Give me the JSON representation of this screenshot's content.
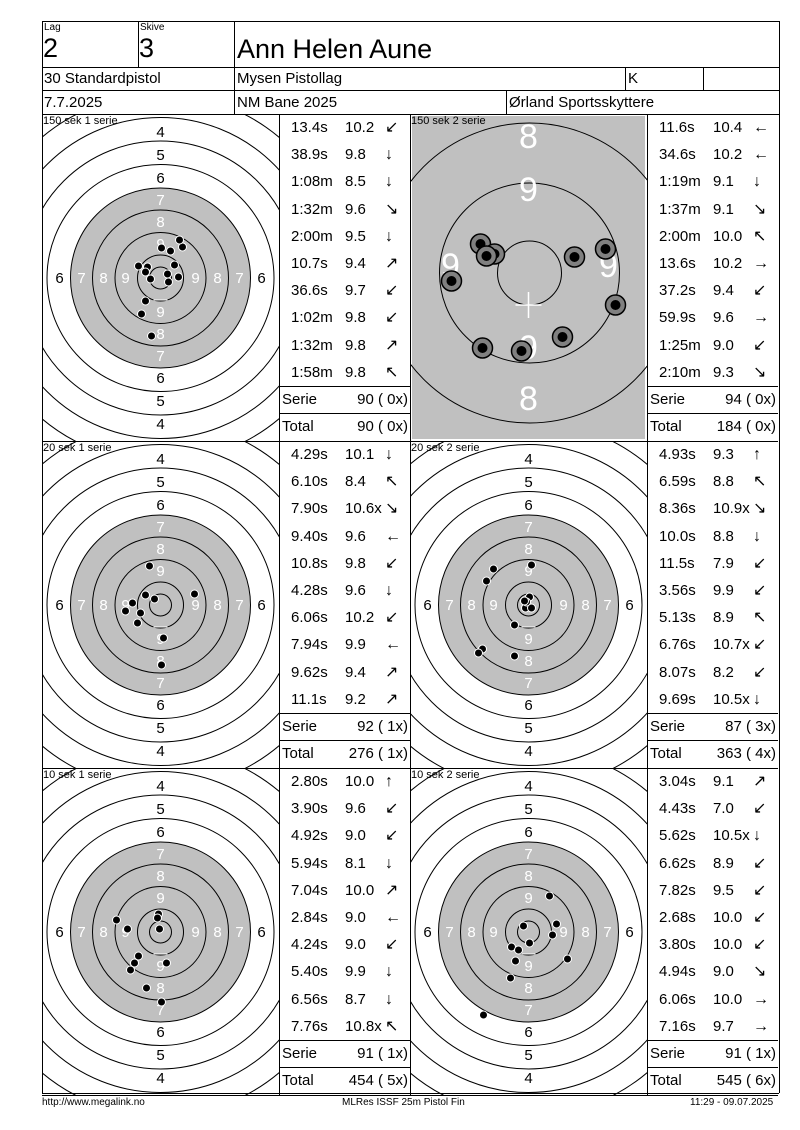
{
  "header": {
    "lag_label": "Lag",
    "lag": "2",
    "skive_label": "Skive",
    "skive": "3",
    "name": "Ann Helen Aune",
    "event": "30 Standardpistol",
    "club": "Mysen Pistollag",
    "class": "K",
    "date": "7.7.2025",
    "competition": "NM Bane 2025",
    "organizer": "Ørland Sportsskyttere"
  },
  "panels": [
    {
      "title": "150 sek 1 serie",
      "target": "precision",
      "shots": [
        {
          "time": "13.4s",
          "score": "10.2",
          "dir": "↙"
        },
        {
          "time": "38.9s",
          "score": "9.8",
          "dir": "↓"
        },
        {
          "time": "1:08m",
          "score": "8.5",
          "dir": "↓"
        },
        {
          "time": "1:32m",
          "score": "9.6",
          "dir": "↘"
        },
        {
          "time": "2:00m",
          "score": "9.5",
          "dir": "↓"
        },
        {
          "time": "10.7s",
          "score": "9.4",
          "dir": "↗"
        },
        {
          "time": "36.6s",
          "score": "9.7",
          "dir": "↙"
        },
        {
          "time": "1:02m",
          "score": "9.8",
          "dir": "↙"
        },
        {
          "time": "1:32m",
          "score": "9.8",
          "dir": "↗"
        },
        {
          "time": "1:58m",
          "score": "9.8",
          "dir": "↖"
        }
      ],
      "serie_label": "Serie",
      "serie": "90 ( 0x)",
      "total_label": "Total",
      "total": "90 ( 0x)",
      "hits": [
        [
          22,
          -31
        ],
        [
          19,
          -38
        ],
        [
          10,
          -27
        ],
        [
          1,
          -30
        ],
        [
          14,
          -13
        ],
        [
          -13,
          -11
        ],
        [
          -22,
          -12
        ],
        [
          -15,
          -6
        ],
        [
          7,
          -4
        ],
        [
          18,
          -1
        ],
        [
          8,
          4
        ],
        [
          -10,
          1
        ],
        [
          -9,
          58
        ],
        [
          -19,
          36
        ],
        [
          -15,
          23
        ]
      ]
    },
    {
      "title": "150 sek 2 serie",
      "target": "zoom",
      "shots": [
        {
          "time": "11.6s",
          "score": "10.4",
          "dir": "←"
        },
        {
          "time": "34.6s",
          "score": "10.2",
          "dir": "←"
        },
        {
          "time": "1:19m",
          "score": "9.1",
          "dir": "↓"
        },
        {
          "time": "1:37m",
          "score": "9.1",
          "dir": "↘"
        },
        {
          "time": "2:00m",
          "score": "10.0",
          "dir": "↖"
        },
        {
          "time": "13.6s",
          "score": "10.2",
          "dir": "→"
        },
        {
          "time": "37.2s",
          "score": "9.4",
          "dir": "↙"
        },
        {
          "time": "59.9s",
          "score": "9.6",
          "dir": "→"
        },
        {
          "time": "1:25m",
          "score": "9.0",
          "dir": "↙"
        },
        {
          "time": "2:10m",
          "score": "9.3",
          "dir": "↘"
        }
      ],
      "serie_label": "Serie",
      "serie": "94 ( 0x)",
      "total_label": "Total",
      "total": "184 ( 0x)",
      "hits": [
        [
          -48,
          -34
        ],
        [
          -34,
          -24
        ],
        [
          -42,
          -22
        ],
        [
          46,
          -21
        ],
        [
          77,
          -29
        ],
        [
          -77,
          3
        ],
        [
          87,
          27
        ],
        [
          -46,
          70
        ],
        [
          -7,
          73
        ],
        [
          34,
          59
        ]
      ],
      "zoom_labels": [
        "8",
        "9",
        "9",
        "9",
        "9",
        "8"
      ]
    },
    {
      "title": "20 sek 1 serie",
      "target": "precision",
      "shots": [
        {
          "time": "4.29s",
          "score": "10.1",
          "dir": "↓"
        },
        {
          "time": "6.10s",
          "score": "8.4",
          "dir": "↖"
        },
        {
          "time": "7.90s",
          "score": "10.6x",
          "dir": "↘"
        },
        {
          "time": "9.40s",
          "score": "9.6",
          "dir": "←"
        },
        {
          "time": "10.8s",
          "score": "9.8",
          "dir": "↙"
        },
        {
          "time": "4.28s",
          "score": "9.6",
          "dir": "↓"
        },
        {
          "time": "6.06s",
          "score": "10.2",
          "dir": "↙"
        },
        {
          "time": "7.94s",
          "score": "9.9",
          "dir": "←"
        },
        {
          "time": "9.62s",
          "score": "9.4",
          "dir": "↗"
        },
        {
          "time": "11.1s",
          "score": "9.2",
          "dir": "↗"
        }
      ],
      "serie_label": "Serie",
      "serie": "92 ( 1x)",
      "total_label": "Total",
      "total": "276 ( 1x)",
      "hits": [
        [
          -11,
          -39
        ],
        [
          -28,
          -2
        ],
        [
          -35,
          6
        ],
        [
          -20,
          8
        ],
        [
          -23,
          18
        ],
        [
          -6,
          -6
        ],
        [
          3,
          33
        ],
        [
          34,
          -11
        ],
        [
          1,
          60
        ],
        [
          -15,
          -10
        ]
      ]
    },
    {
      "title": "20 sek 2 serie",
      "target": "precision",
      "shots": [
        {
          "time": "4.93s",
          "score": "9.3",
          "dir": "↑"
        },
        {
          "time": "6.59s",
          "score": "8.8",
          "dir": "↖"
        },
        {
          "time": "8.36s",
          "score": "10.9x",
          "dir": "↘"
        },
        {
          "time": "10.0s",
          "score": "8.8",
          "dir": "↓"
        },
        {
          "time": "11.5s",
          "score": "7.9",
          "dir": "↙"
        },
        {
          "time": "3.56s",
          "score": "9.9",
          "dir": "↙"
        },
        {
          "time": "5.13s",
          "score": "8.9",
          "dir": "↖"
        },
        {
          "time": "6.76s",
          "score": "10.7x",
          "dir": "↙"
        },
        {
          "time": "8.07s",
          "score": "8.2",
          "dir": "↙"
        },
        {
          "time": "9.69s",
          "score": "10.5x",
          "dir": "↓"
        }
      ],
      "serie_label": "Serie",
      "serie": "87 ( 3x)",
      "total_label": "Total",
      "total": "363 ( 4x)",
      "hits": [
        [
          -35,
          -36
        ],
        [
          -42,
          -24
        ],
        [
          3,
          -40
        ],
        [
          1,
          -8
        ],
        [
          -3,
          3
        ],
        [
          3,
          3
        ],
        [
          -2,
          -3
        ],
        [
          -14,
          20
        ],
        [
          -46,
          44
        ],
        [
          -50,
          48
        ],
        [
          -14,
          51
        ],
        [
          -4,
          -4
        ]
      ]
    },
    {
      "title": "10 sek 1 serie",
      "target": "precision",
      "shots": [
        {
          "time": "2.80s",
          "score": "10.0",
          "dir": "↑"
        },
        {
          "time": "3.90s",
          "score": "9.6",
          "dir": "↙"
        },
        {
          "time": "4.92s",
          "score": "9.0",
          "dir": "↙"
        },
        {
          "time": "5.94s",
          "score": "8.1",
          "dir": "↓"
        },
        {
          "time": "7.04s",
          "score": "10.0",
          "dir": "↗"
        },
        {
          "time": "2.84s",
          "score": "9.0",
          "dir": "←"
        },
        {
          "time": "4.24s",
          "score": "9.0",
          "dir": "↙"
        },
        {
          "time": "5.40s",
          "score": "9.9",
          "dir": "↓"
        },
        {
          "time": "6.56s",
          "score": "8.7",
          "dir": "↓"
        },
        {
          "time": "7.76s",
          "score": "10.8x",
          "dir": "↖"
        }
      ],
      "serie_label": "Serie",
      "serie": "91 ( 1x)",
      "total_label": "Total",
      "total": "454 ( 5x)",
      "hits": [
        [
          -2,
          -18
        ],
        [
          -1,
          -3
        ],
        [
          -44,
          -12
        ],
        [
          -33,
          -3
        ],
        [
          -22,
          24
        ],
        [
          -30,
          38
        ],
        [
          -26,
          31
        ],
        [
          6,
          31
        ],
        [
          -14,
          56
        ],
        [
          1,
          70
        ],
        [
          -3,
          -14
        ]
      ]
    },
    {
      "title": "10 sek 2 serie",
      "target": "precision",
      "shots": [
        {
          "time": "3.04s",
          "score": "9.1",
          "dir": "↗"
        },
        {
          "time": "4.43s",
          "score": "7.0",
          "dir": "↙"
        },
        {
          "time": "5.62s",
          "score": "10.5x",
          "dir": "↓"
        },
        {
          "time": "6.62s",
          "score": "8.9",
          "dir": "↙"
        },
        {
          "time": "7.82s",
          "score": "9.5",
          "dir": "↙"
        },
        {
          "time": "2.68s",
          "score": "10.0",
          "dir": "↙"
        },
        {
          "time": "3.80s",
          "score": "10.0",
          "dir": "↙"
        },
        {
          "time": "4.94s",
          "score": "9.0",
          "dir": "↘"
        },
        {
          "time": "6.06s",
          "score": "10.0",
          "dir": "→"
        },
        {
          "time": "7.16s",
          "score": "9.7",
          "dir": "→"
        }
      ],
      "serie_label": "Serie",
      "serie": "91 ( 1x)",
      "total_label": "Total",
      "total": "545 ( 6x)",
      "hits": [
        [
          21,
          -36
        ],
        [
          -5,
          -6
        ],
        [
          28,
          -8
        ],
        [
          24,
          3
        ],
        [
          -17,
          15
        ],
        [
          -10,
          18
        ],
        [
          1,
          11
        ],
        [
          39,
          27
        ],
        [
          -18,
          46
        ],
        [
          -45,
          83
        ],
        [
          -13,
          29
        ]
      ]
    }
  ],
  "footer": {
    "url": "http://www.megalink.no",
    "software": "MLRes ISSF 25m Pistol Fin",
    "timestamp": "11:29 - 09.07.2025"
  }
}
